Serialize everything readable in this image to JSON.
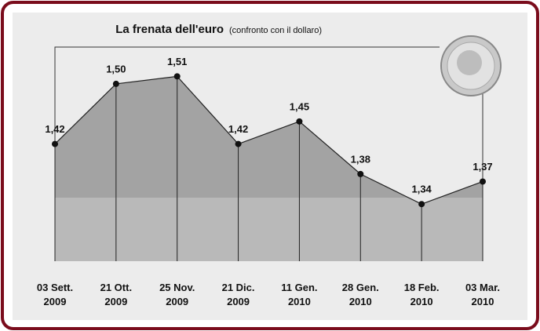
{
  "chart_data": {
    "type": "area",
    "title": "La frenata dell'euro",
    "subtitle": "(confronto con il dollaro)",
    "categories": [
      "03 Sett.\n2009",
      "21 Ott.\n2009",
      "25 Nov.\n2009",
      "21 Dic.\n2009",
      "11 Gen.\n2010",
      "28 Gen.\n2010",
      "18 Feb.\n2010",
      "03 Mar.\n2010"
    ],
    "values": [
      1.42,
      1.5,
      1.51,
      1.42,
      1.45,
      1.38,
      1.34,
      1.37
    ],
    "value_labels": [
      "1,42",
      "1,50",
      "1,51",
      "1,42",
      "1,45",
      "1,38",
      "1,34",
      "1,37"
    ],
    "color": "#a3a3a3",
    "ylim": [
      1.264,
      1.549
    ]
  }
}
